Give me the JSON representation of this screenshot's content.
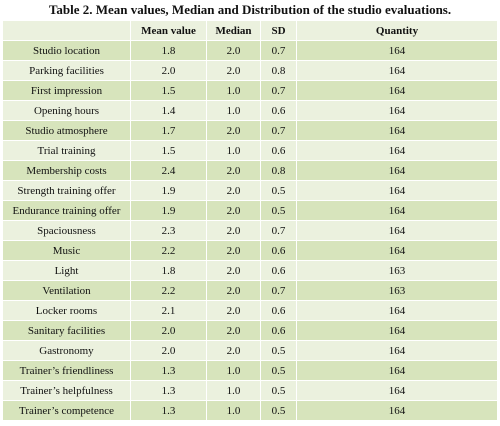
{
  "table": {
    "title": "Table 2. Mean values, Median and Distribution of the studio evaluations.",
    "header": [
      "Mean value",
      "Median",
      "SD",
      "Quantity"
    ],
    "rows": [
      [
        "Studio location",
        "1.8",
        "2.0",
        "0.7",
        "164"
      ],
      [
        "Parking facilities",
        "2.0",
        "2.0",
        "0.8",
        "164"
      ],
      [
        "First impression",
        "1.5",
        "1.0",
        "0.7",
        "164"
      ],
      [
        "Opening hours",
        "1.4",
        "1.0",
        "0.6",
        "164"
      ],
      [
        "Studio atmosphere",
        "1.7",
        "2.0",
        "0.7",
        "164"
      ],
      [
        "Trial training",
        "1.5",
        "1.0",
        "0.6",
        "164"
      ],
      [
        "Membership costs",
        "2.4",
        "2.0",
        "0.8",
        "164"
      ],
      [
        "Strength training offer",
        "1.9",
        "2.0",
        "0.5",
        "164"
      ],
      [
        "Endurance training offer",
        "1.9",
        "2.0",
        "0.5",
        "164"
      ],
      [
        "Spaciousness",
        "2.3",
        "2.0",
        "0.7",
        "164"
      ],
      [
        "Music",
        "2.2",
        "2.0",
        "0.6",
        "164"
      ],
      [
        "Light",
        "1.8",
        "2.0",
        "0.6",
        "163"
      ],
      [
        "Ventilation",
        "2.2",
        "2.0",
        "0.7",
        "163"
      ],
      [
        "Locker rooms",
        "2.1",
        "2.0",
        "0.6",
        "164"
      ],
      [
        "Sanitary facilities",
        "2.0",
        "2.0",
        "0.6",
        "164"
      ],
      [
        "Gastronomy",
        "2.0",
        "2.0",
        "0.5",
        "164"
      ],
      [
        "Trainer’s friendliness",
        "1.3",
        "1.0",
        "0.5",
        "164"
      ],
      [
        "Trainer’s helpfulness",
        "1.3",
        "1.0",
        "0.5",
        "164"
      ],
      [
        "Trainer’s competence",
        "1.3",
        "1.0",
        "0.5",
        "164"
      ]
    ]
  }
}
